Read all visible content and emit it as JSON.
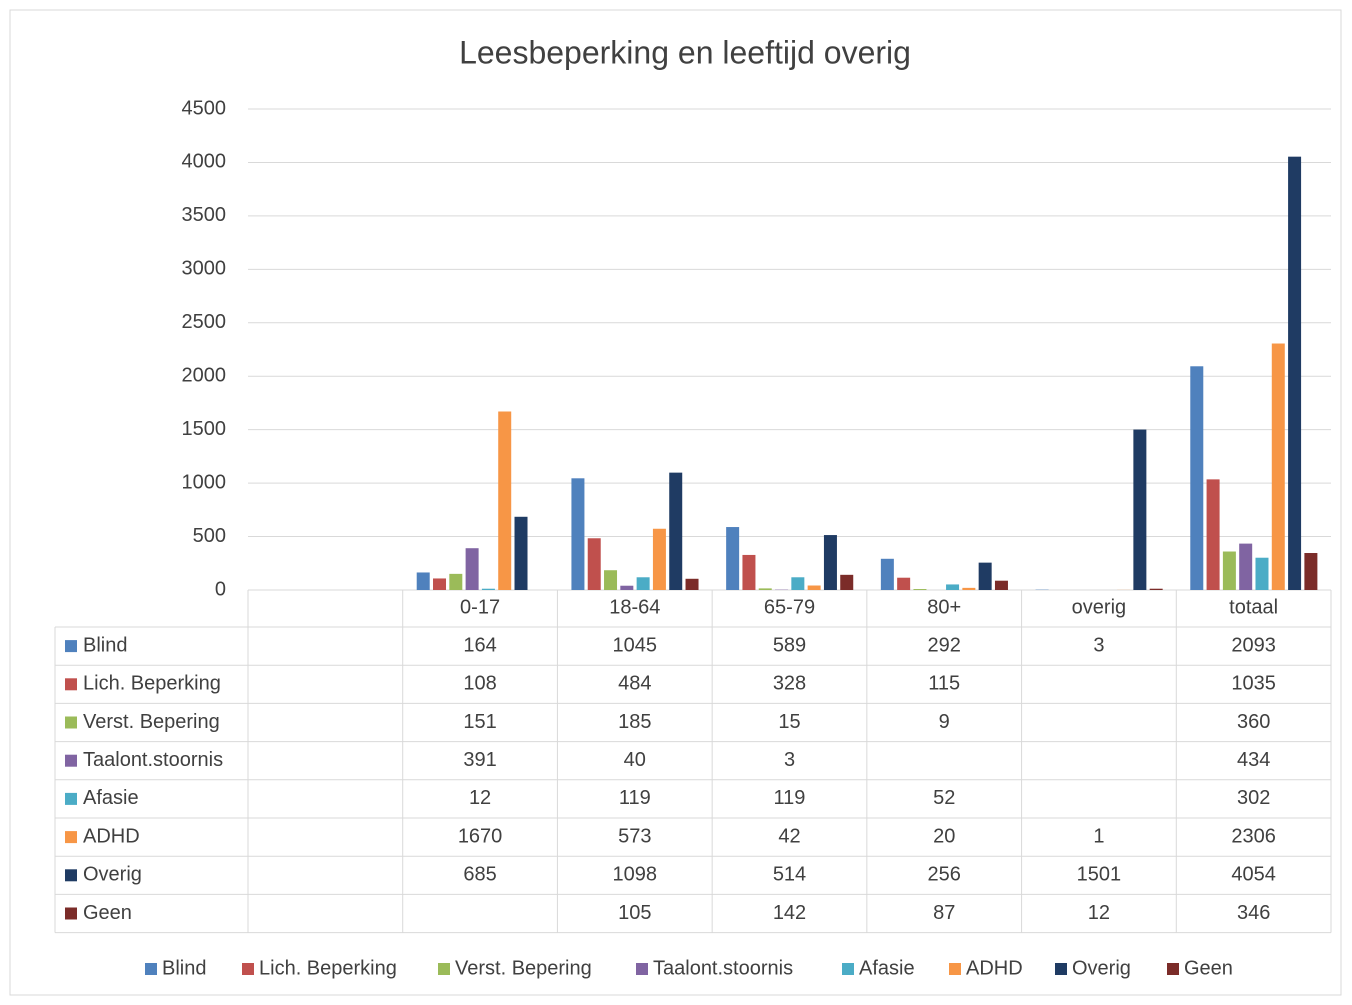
{
  "chart_data": {
    "type": "bar",
    "title": "Leesbeperking en leeftijd overig",
    "categories": [
      null,
      "0-17",
      "18-64",
      "65-79",
      "80+",
      "overig",
      "totaal"
    ],
    "ylim": [
      0,
      4500
    ],
    "yticks": [
      0,
      500,
      1000,
      1500,
      2000,
      2500,
      3000,
      3500,
      4000,
      4500
    ],
    "grid": true,
    "legend": "bottom",
    "series": [
      {
        "name": "Blind",
        "color": "#4f81bd",
        "values": [
          null,
          164,
          1045,
          589,
          292,
          3,
          2093
        ]
      },
      {
        "name": "Lich. Beperking",
        "color": "#c0504d",
        "values": [
          null,
          108,
          484,
          328,
          115,
          null,
          1035
        ]
      },
      {
        "name": "Verst. Bepering",
        "color": "#9bbb59",
        "values": [
          null,
          151,
          185,
          15,
          9,
          null,
          360
        ]
      },
      {
        "name": "Taalont.stoornis",
        "color": "#8064a2",
        "values": [
          null,
          391,
          40,
          3,
          null,
          null,
          434
        ]
      },
      {
        "name": "Afasie",
        "color": "#4bacc6",
        "values": [
          null,
          12,
          119,
          119,
          52,
          null,
          302
        ]
      },
      {
        "name": "ADHD",
        "color": "#f79646",
        "values": [
          null,
          1670,
          573,
          42,
          20,
          1,
          2306
        ]
      },
      {
        "name": "Overig",
        "color": "#1f3b63",
        "values": [
          null,
          685,
          1098,
          514,
          256,
          1501,
          4054
        ]
      },
      {
        "name": "Geen",
        "color": "#7b2c29",
        "values": [
          null,
          null,
          105,
          142,
          87,
          12,
          346
        ]
      }
    ]
  }
}
